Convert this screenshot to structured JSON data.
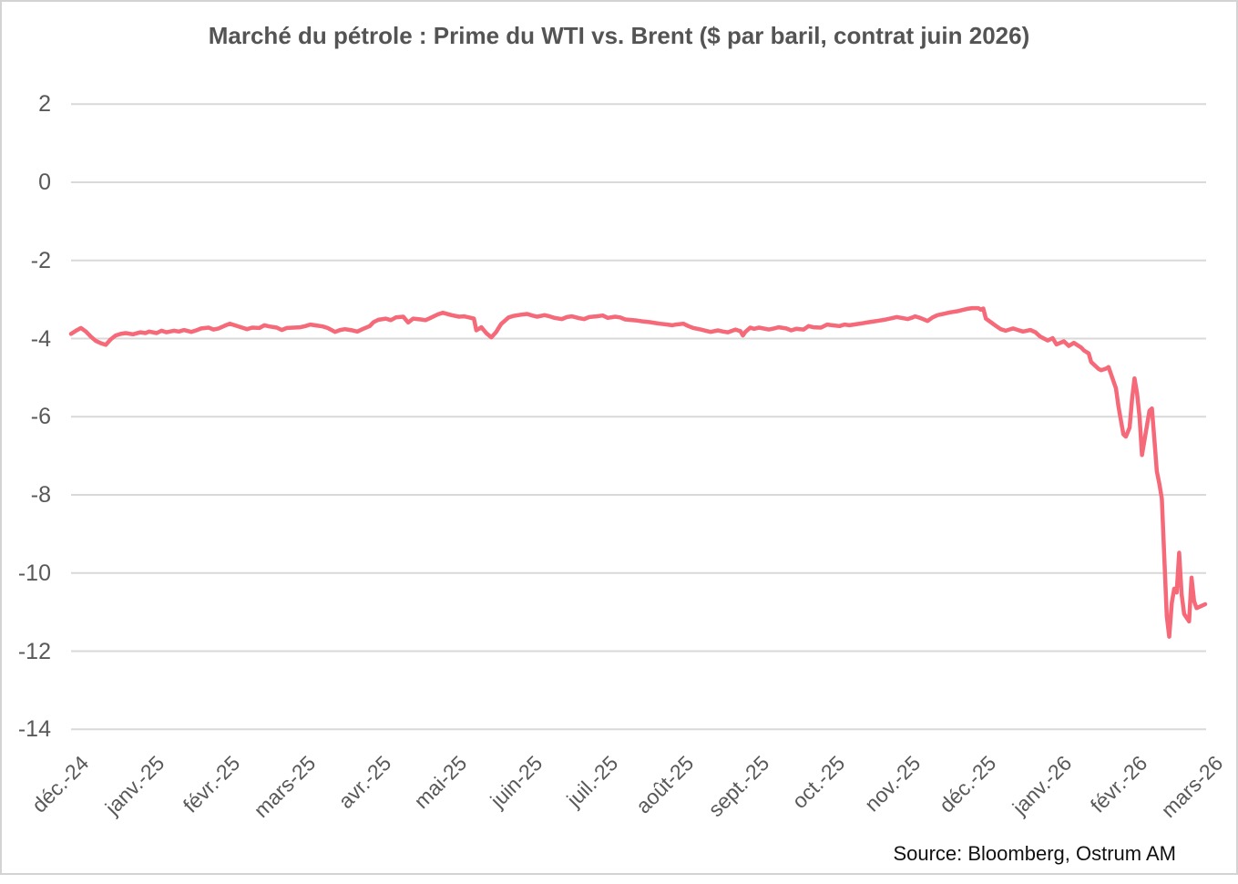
{
  "chart_data": {
    "type": "line",
    "title": "Marché du pétrole : Prime du WTI vs. Brent ($ par baril, contrat juin 2026)",
    "source": "Source: Bloomberg, Ostrum AM",
    "grid": true,
    "legend_position": "none",
    "colors": {
      "line": "#F56979",
      "grid": "#D9D9D9",
      "tick_text": "#595959",
      "title_text": "#545454",
      "source_text": "#111111",
      "frame_border": "#D3D3D3",
      "background": "#FFFFFF"
    },
    "y_axis": {
      "ticks": [
        2,
        0,
        -2,
        -4,
        -6,
        -8,
        -10,
        -12,
        -14
      ],
      "min": -14,
      "max": 2
    },
    "x_axis": {
      "start_date": "2024-12-01",
      "end_date": "2026-03-01",
      "tick_labels": [
        "déc.-24",
        "janv.-25",
        "févr.-25",
        "mars-25",
        "avr.-25",
        "mai-25",
        "juin-25",
        "juil.-25",
        "août-25",
        "sept.-25",
        "oct.-25",
        "nov.-25",
        "déc.-25",
        "janv.-26",
        "févr.-26",
        "mars-26"
      ]
    },
    "series": [
      {
        "points": [
          [
            "2024-12-01",
            -3.88
          ],
          [
            "2024-12-03",
            -3.8
          ],
          [
            "2024-12-05",
            -3.73
          ],
          [
            "2024-12-07",
            -3.82
          ],
          [
            "2024-12-09",
            -3.95
          ],
          [
            "2024-12-11",
            -4.06
          ],
          [
            "2024-12-13",
            -4.12
          ],
          [
            "2024-12-15",
            -4.16
          ],
          [
            "2024-12-17",
            -4.02
          ],
          [
            "2024-12-19",
            -3.92
          ],
          [
            "2024-12-21",
            -3.88
          ],
          [
            "2024-12-23",
            -3.86
          ],
          [
            "2024-12-26",
            -3.89
          ],
          [
            "2024-12-29",
            -3.84
          ],
          [
            "2024-12-31",
            -3.86
          ],
          [
            "2025-01-02",
            -3.82
          ],
          [
            "2025-01-05",
            -3.86
          ],
          [
            "2025-01-07",
            -3.8
          ],
          [
            "2025-01-09",
            -3.84
          ],
          [
            "2025-01-12",
            -3.8
          ],
          [
            "2025-01-14",
            -3.82
          ],
          [
            "2025-01-16",
            -3.78
          ],
          [
            "2025-01-19",
            -3.83
          ],
          [
            "2025-01-21",
            -3.79
          ],
          [
            "2025-01-23",
            -3.74
          ],
          [
            "2025-01-26",
            -3.72
          ],
          [
            "2025-01-28",
            -3.77
          ],
          [
            "2025-01-30",
            -3.74
          ],
          [
            "2025-02-02",
            -3.67
          ],
          [
            "2025-02-04",
            -3.62
          ],
          [
            "2025-02-06",
            -3.66
          ],
          [
            "2025-02-09",
            -3.72
          ],
          [
            "2025-02-11",
            -3.76
          ],
          [
            "2025-02-13",
            -3.72
          ],
          [
            "2025-02-16",
            -3.73
          ],
          [
            "2025-02-18",
            -3.66
          ],
          [
            "2025-02-20",
            -3.69
          ],
          [
            "2025-02-23",
            -3.72
          ],
          [
            "2025-02-25",
            -3.78
          ],
          [
            "2025-02-27",
            -3.73
          ],
          [
            "2025-03-02",
            -3.71
          ],
          [
            "2025-03-04",
            -3.68
          ],
          [
            "2025-03-06",
            -3.64
          ],
          [
            "2025-03-09",
            -3.67
          ],
          [
            "2025-03-11",
            -3.69
          ],
          [
            "2025-03-13",
            -3.73
          ],
          [
            "2025-03-16",
            -3.83
          ],
          [
            "2025-03-18",
            -3.78
          ],
          [
            "2025-03-20",
            -3.76
          ],
          [
            "2025-03-23",
            -3.79
          ],
          [
            "2025-03-25",
            -3.82
          ],
          [
            "2025-03-27",
            -3.76
          ],
          [
            "2025-03-30",
            -3.68
          ],
          [
            "2025-04-01",
            -3.58
          ],
          [
            "2025-04-03",
            -3.52
          ],
          [
            "2025-04-06",
            -3.49
          ],
          [
            "2025-04-08",
            -3.53
          ],
          [
            "2025-04-10",
            -3.46
          ],
          [
            "2025-04-13",
            -3.44
          ],
          [
            "2025-04-15",
            -3.59
          ],
          [
            "2025-04-17",
            -3.49
          ],
          [
            "2025-04-20",
            -3.51
          ],
          [
            "2025-04-22",
            -3.53
          ],
          [
            "2025-04-24",
            -3.47
          ],
          [
            "2025-04-27",
            -3.38
          ],
          [
            "2025-04-29",
            -3.34
          ],
          [
            "2025-05-02",
            -3.4
          ],
          [
            "2025-05-05",
            -3.44
          ],
          [
            "2025-05-07",
            -3.43
          ],
          [
            "2025-05-09",
            -3.46
          ],
          [
            "2025-05-11",
            -3.49
          ],
          [
            "2025-05-12",
            -3.79
          ],
          [
            "2025-05-14",
            -3.71
          ],
          [
            "2025-05-16",
            -3.86
          ],
          [
            "2025-05-18",
            -3.97
          ],
          [
            "2025-05-20",
            -3.83
          ],
          [
            "2025-05-22",
            -3.63
          ],
          [
            "2025-05-25",
            -3.46
          ],
          [
            "2025-05-27",
            -3.42
          ],
          [
            "2025-05-30",
            -3.39
          ],
          [
            "2025-06-02",
            -3.37
          ],
          [
            "2025-06-04",
            -3.41
          ],
          [
            "2025-06-06",
            -3.44
          ],
          [
            "2025-06-09",
            -3.4
          ],
          [
            "2025-06-11",
            -3.43
          ],
          [
            "2025-06-13",
            -3.47
          ],
          [
            "2025-06-16",
            -3.5
          ],
          [
            "2025-06-18",
            -3.45
          ],
          [
            "2025-06-20",
            -3.43
          ],
          [
            "2025-06-23",
            -3.48
          ],
          [
            "2025-06-25",
            -3.5
          ],
          [
            "2025-06-27",
            -3.45
          ],
          [
            "2025-06-30",
            -3.43
          ],
          [
            "2025-07-02",
            -3.41
          ],
          [
            "2025-07-04",
            -3.47
          ],
          [
            "2025-07-07",
            -3.44
          ],
          [
            "2025-07-09",
            -3.46
          ],
          [
            "2025-07-11",
            -3.51
          ],
          [
            "2025-07-14",
            -3.53
          ],
          [
            "2025-07-16",
            -3.54
          ],
          [
            "2025-07-18",
            -3.56
          ],
          [
            "2025-07-21",
            -3.58
          ],
          [
            "2025-07-23",
            -3.6
          ],
          [
            "2025-07-25",
            -3.62
          ],
          [
            "2025-07-28",
            -3.64
          ],
          [
            "2025-07-30",
            -3.66
          ],
          [
            "2025-08-01",
            -3.64
          ],
          [
            "2025-08-04",
            -3.62
          ],
          [
            "2025-08-06",
            -3.68
          ],
          [
            "2025-08-08",
            -3.73
          ],
          [
            "2025-08-11",
            -3.77
          ],
          [
            "2025-08-13",
            -3.8
          ],
          [
            "2025-08-15",
            -3.83
          ],
          [
            "2025-08-18",
            -3.79
          ],
          [
            "2025-08-20",
            -3.82
          ],
          [
            "2025-08-22",
            -3.84
          ],
          [
            "2025-08-25",
            -3.77
          ],
          [
            "2025-08-27",
            -3.81
          ],
          [
            "2025-08-28",
            -3.92
          ],
          [
            "2025-08-29",
            -3.83
          ],
          [
            "2025-08-31",
            -3.72
          ],
          [
            "2025-09-02",
            -3.75
          ],
          [
            "2025-09-04",
            -3.72
          ],
          [
            "2025-09-08",
            -3.77
          ],
          [
            "2025-09-10",
            -3.74
          ],
          [
            "2025-09-12",
            -3.71
          ],
          [
            "2025-09-15",
            -3.74
          ],
          [
            "2025-09-17",
            -3.79
          ],
          [
            "2025-09-19",
            -3.75
          ],
          [
            "2025-09-22",
            -3.77
          ],
          [
            "2025-09-24",
            -3.68
          ],
          [
            "2025-09-26",
            -3.71
          ],
          [
            "2025-09-29",
            -3.72
          ],
          [
            "2025-10-01",
            -3.64
          ],
          [
            "2025-10-03",
            -3.66
          ],
          [
            "2025-10-06",
            -3.68
          ],
          [
            "2025-10-08",
            -3.64
          ],
          [
            "2025-10-10",
            -3.66
          ],
          [
            "2025-10-13",
            -3.63
          ],
          [
            "2025-10-15",
            -3.61
          ],
          [
            "2025-10-17",
            -3.59
          ],
          [
            "2025-10-20",
            -3.56
          ],
          [
            "2025-10-22",
            -3.54
          ],
          [
            "2025-10-24",
            -3.52
          ],
          [
            "2025-10-27",
            -3.48
          ],
          [
            "2025-10-29",
            -3.45
          ],
          [
            "2025-10-31",
            -3.47
          ],
          [
            "2025-11-03",
            -3.5
          ],
          [
            "2025-11-05",
            -3.46
          ],
          [
            "2025-11-06",
            -3.43
          ],
          [
            "2025-11-08",
            -3.47
          ],
          [
            "2025-11-11",
            -3.55
          ],
          [
            "2025-11-13",
            -3.46
          ],
          [
            "2025-11-15",
            -3.4
          ],
          [
            "2025-11-18",
            -3.36
          ],
          [
            "2025-11-20",
            -3.33
          ],
          [
            "2025-11-23",
            -3.3
          ],
          [
            "2025-11-25",
            -3.27
          ],
          [
            "2025-11-27",
            -3.24
          ],
          [
            "2025-11-29",
            -3.22
          ],
          [
            "2025-12-01",
            -3.22
          ],
          [
            "2025-12-02",
            -3.26
          ],
          [
            "2025-12-03",
            -3.23
          ],
          [
            "2025-12-04",
            -3.49
          ],
          [
            "2025-12-06",
            -3.58
          ],
          [
            "2025-12-08",
            -3.67
          ],
          [
            "2025-12-10",
            -3.76
          ],
          [
            "2025-12-12",
            -3.8
          ],
          [
            "2025-12-15",
            -3.74
          ],
          [
            "2025-12-17",
            -3.78
          ],
          [
            "2025-12-19",
            -3.82
          ],
          [
            "2025-12-22",
            -3.78
          ],
          [
            "2025-12-24",
            -3.84
          ],
          [
            "2025-12-26",
            -3.95
          ],
          [
            "2025-12-29",
            -4.05
          ],
          [
            "2025-12-31",
            -3.99
          ],
          [
            "2026-01-02",
            -4.15
          ],
          [
            "2026-01-05",
            -4.07
          ],
          [
            "2026-01-07",
            -4.19
          ],
          [
            "2026-01-09",
            -4.11
          ],
          [
            "2026-01-12",
            -4.23
          ],
          [
            "2026-01-13",
            -4.3
          ],
          [
            "2026-01-14",
            -4.34
          ],
          [
            "2026-01-15",
            -4.38
          ],
          [
            "2026-01-16",
            -4.6
          ],
          [
            "2026-01-19",
            -4.78
          ],
          [
            "2026-01-20",
            -4.81
          ],
          [
            "2026-01-21",
            -4.79
          ],
          [
            "2026-01-22",
            -4.77
          ],
          [
            "2026-01-23",
            -4.73
          ],
          [
            "2026-01-26",
            -5.27
          ],
          [
            "2026-01-27",
            -5.74
          ],
          [
            "2026-01-28",
            -6.1
          ],
          [
            "2026-01-29",
            -6.45
          ],
          [
            "2026-01-30",
            -6.51
          ],
          [
            "2026-02-01",
            -6.28
          ],
          [
            "2026-02-02",
            -5.55
          ],
          [
            "2026-02-03",
            -5.02
          ],
          [
            "2026-02-04",
            -5.4
          ],
          [
            "2026-02-05",
            -6.0
          ],
          [
            "2026-02-06",
            -6.98
          ],
          [
            "2026-02-09",
            -5.85
          ],
          [
            "2026-02-10",
            -5.79
          ],
          [
            "2026-02-11",
            -6.58
          ],
          [
            "2026-02-12",
            -7.4
          ],
          [
            "2026-02-13",
            -7.72
          ],
          [
            "2026-02-14",
            -8.1
          ],
          [
            "2026-02-15",
            -9.6
          ],
          [
            "2026-02-16",
            -11.1
          ],
          [
            "2026-02-17",
            -11.63
          ],
          [
            "2026-02-18",
            -10.77
          ],
          [
            "2026-02-19",
            -10.4
          ],
          [
            "2026-02-20",
            -10.5
          ],
          [
            "2026-02-21",
            -9.48
          ],
          [
            "2026-02-22",
            -10.54
          ],
          [
            "2026-02-23",
            -11.05
          ],
          [
            "2026-02-25",
            -11.24
          ],
          [
            "2026-02-26",
            -10.12
          ],
          [
            "2026-02-27",
            -10.72
          ],
          [
            "2026-02-28",
            -10.9
          ],
          [
            "2026-03-01",
            -10.8
          ]
        ]
      }
    ]
  }
}
